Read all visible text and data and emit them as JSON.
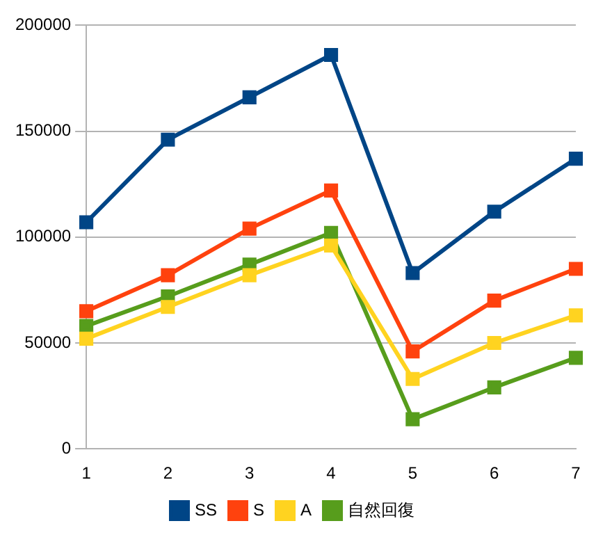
{
  "chart_data": {
    "type": "line",
    "categories": [
      "1",
      "2",
      "3",
      "4",
      "5",
      "6",
      "7"
    ],
    "series": [
      {
        "name": "SS",
        "color": "#004586",
        "values": [
          107000,
          146000,
          166000,
          186000,
          83000,
          112000,
          137000
        ]
      },
      {
        "name": "S",
        "color": "#ff420e",
        "values": [
          65000,
          82000,
          104000,
          122000,
          46000,
          70000,
          85000
        ]
      },
      {
        "name": "A",
        "color": "#ffd320",
        "values": [
          52000,
          67000,
          82000,
          96000,
          33000,
          50000,
          63000
        ]
      },
      {
        "name": "自然回復",
        "color": "#579d1c",
        "values": [
          58000,
          72000,
          87000,
          102000,
          14000,
          29000,
          43000
        ]
      }
    ],
    "ylim": [
      0,
      200000
    ],
    "yticks": [
      0,
      50000,
      100000,
      150000,
      200000
    ],
    "grid": "y",
    "legend": "bottom",
    "marker": "square",
    "line_style": "solid"
  }
}
